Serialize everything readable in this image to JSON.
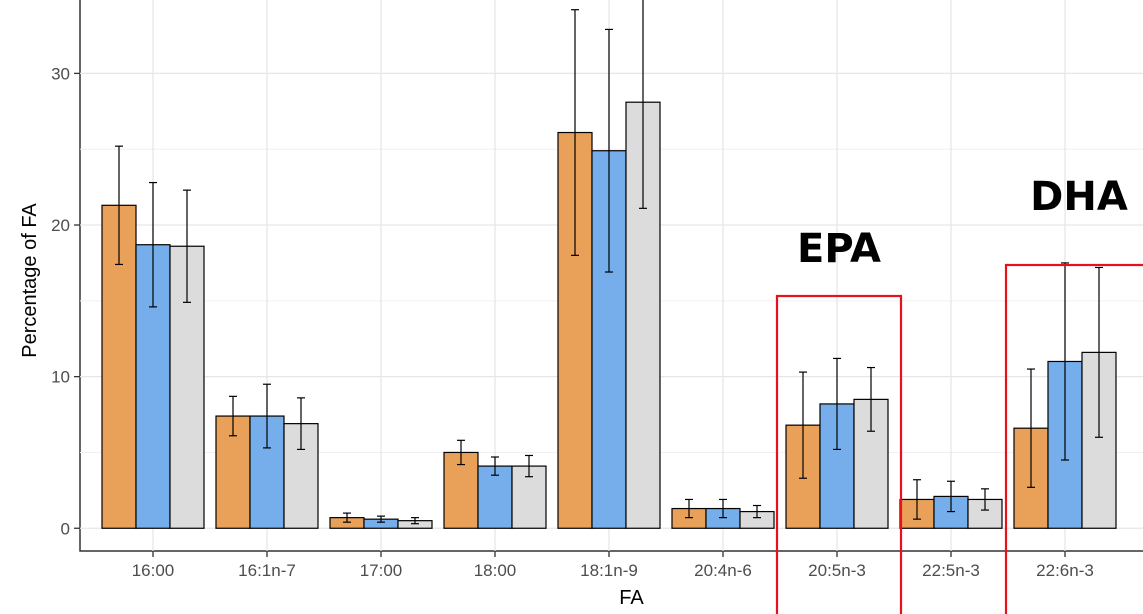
{
  "chart_data": {
    "type": "bar",
    "title": "",
    "xlabel": "FA",
    "ylabel": "Percentage of FA",
    "ylim": [
      -1.5,
      35.5
    ],
    "yticks": [
      0,
      10,
      20,
      30
    ],
    "grid": true,
    "legend": "none",
    "categories": [
      "16:00",
      "16:1n-7",
      "17:00",
      "18:00",
      "18:1n-9",
      "20:4n-6",
      "20:5n-3",
      "22:5n-3",
      "22:6n-3"
    ],
    "series": [
      {
        "color": "#E9A15A",
        "values": [
          21.3,
          7.4,
          0.7,
          5.0,
          26.1,
          1.3,
          6.8,
          1.9,
          6.6
        ],
        "error": [
          3.9,
          1.3,
          0.3,
          0.8,
          8.1,
          0.6,
          3.5,
          1.3,
          3.9
        ]
      },
      {
        "color": "#75AEEA",
        "values": [
          18.7,
          7.4,
          0.6,
          4.1,
          24.9,
          1.3,
          8.2,
          2.1,
          11.0
        ],
        "error": [
          4.1,
          2.1,
          0.2,
          0.6,
          8.0,
          0.6,
          3.0,
          1.0,
          6.5
        ]
      },
      {
        "color": "#DCDCDC",
        "values": [
          18.6,
          6.9,
          0.5,
          4.1,
          28.1,
          1.1,
          8.5,
          1.9,
          11.6
        ],
        "error": [
          3.7,
          1.7,
          0.2,
          0.7,
          7.0,
          0.4,
          2.1,
          0.7,
          5.6
        ]
      }
    ],
    "annotations": [
      {
        "text": "EPA",
        "category": "20:5n-3",
        "box_color": "#E8101A"
      },
      {
        "text": "DHA",
        "category": "22:6n-3",
        "box_color": "#E8101A"
      }
    ]
  }
}
